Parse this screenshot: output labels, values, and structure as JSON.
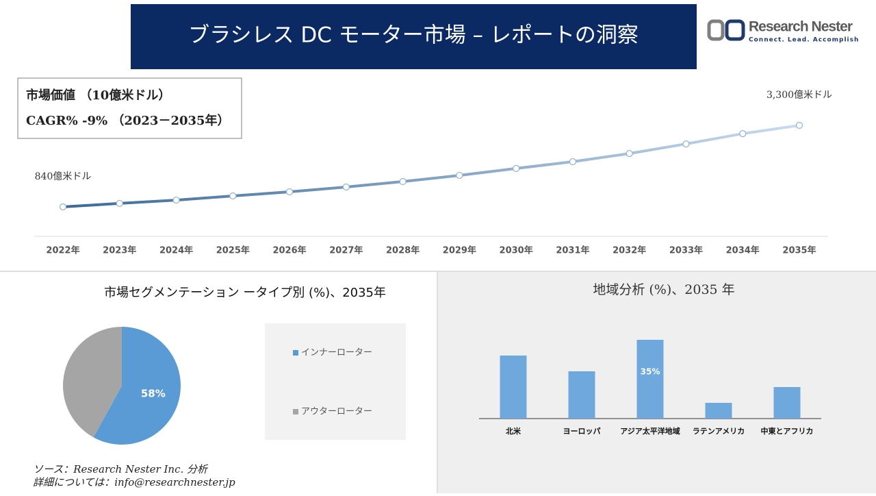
{
  "header": {
    "title": "ブラシレス DC モーター市場 – レポートの洞察"
  },
  "logo": {
    "name": "Research Nester",
    "tagline": "Connect. Lead. Accomplish"
  },
  "summary": {
    "market_value": "市場価値 （10億米ドル）",
    "cagr": "CAGR% -9% （2023－2035年）"
  },
  "chart_data": [
    {
      "type": "line",
      "categories": [
        "2022年",
        "2023年",
        "2024年",
        "2025年",
        "2026年",
        "2027年",
        "2028年",
        "2029年",
        "2030年",
        "2031年",
        "2032年",
        "2033年",
        "2034年",
        "2035年"
      ],
      "values": [
        840,
        945,
        1045,
        1170,
        1295,
        1440,
        1605,
        1790,
        2000,
        2205,
        2450,
        2740,
        3050,
        3300
      ],
      "value_labels": [
        "840億米ドル",
        null,
        null,
        null,
        null,
        null,
        null,
        null,
        null,
        null,
        null,
        null,
        null,
        "3,300億米ドル"
      ],
      "colors": [
        "#3b6a99",
        "#c9dcee"
      ]
    },
    {
      "type": "pie",
      "title": "市場セグメンテーション ータイプ別 (%)、2035年",
      "categories": [
        "インナーローター",
        "アウターローター"
      ],
      "values": [
        58,
        42
      ],
      "value_labels": [
        "58%",
        null
      ],
      "colors": [
        "#5b9bd5",
        "#a5a5a5"
      ],
      "legend": "right"
    },
    {
      "type": "bar",
      "title": "地域分析 (%)、2035 年",
      "categories": [
        "北米",
        "ヨーロッパ",
        "アジア太平洋地域",
        "ラテンアメリカ",
        "中東とアフリカ"
      ],
      "values": [
        28,
        21,
        35,
        7,
        14
      ],
      "value_labels": [
        null,
        null,
        "35%",
        null,
        null
      ],
      "color": "#6fa8dc"
    }
  ],
  "footer": {
    "source": "ソース：Research Nester Inc. 分析",
    "contact": "詳細については：info@researchnester.jp"
  }
}
